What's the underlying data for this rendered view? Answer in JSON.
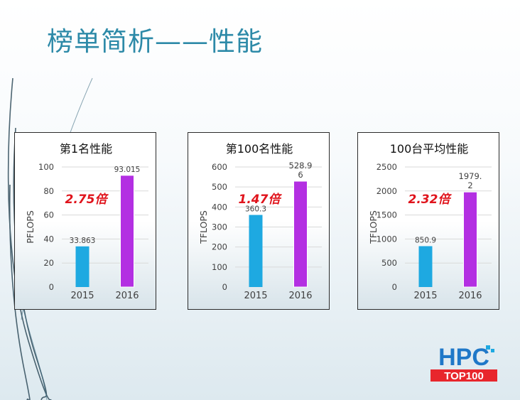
{
  "slide": {
    "title": "榜单简析——性能"
  },
  "colors": {
    "blue": "#1ea9e1",
    "purple": "#b32fe2",
    "multiplier": "#e0141c",
    "title": "#2d8aa8"
  },
  "logo": {
    "line1": "HPC",
    "line2": "TOP100"
  },
  "chart_data": [
    {
      "type": "bar",
      "title": "第1名性能",
      "ylabel": "PFLOPS",
      "categories": [
        "2015",
        "2016"
      ],
      "values": [
        33.863,
        93.015
      ],
      "value_labels": [
        "33.863",
        "93.015"
      ],
      "yticks": [
        "0",
        "20",
        "40",
        "60",
        "80",
        "100"
      ],
      "ylim": [
        0,
        100
      ],
      "multiplier": "2.75倍",
      "grid": true
    },
    {
      "type": "bar",
      "title": "第100名性能",
      "ylabel": "TFLOPS",
      "categories": [
        "2015",
        "2016"
      ],
      "values": [
        360.3,
        528.96
      ],
      "value_labels": [
        "360.3",
        "528.9\n6"
      ],
      "yticks": [
        "0",
        "100",
        "200",
        "300",
        "400",
        "500",
        "600"
      ],
      "ylim": [
        0,
        600
      ],
      "multiplier": "1.47倍",
      "grid": true
    },
    {
      "type": "bar",
      "title": "100台平均性能",
      "ylabel": "TFLOPS",
      "categories": [
        "2015",
        "2016"
      ],
      "values": [
        850.9,
        1979.2
      ],
      "value_labels": [
        "850.9",
        "1979.\n2"
      ],
      "yticks": [
        "0",
        "500",
        "1000",
        "1500",
        "2000",
        "2500"
      ],
      "ylim": [
        0,
        2500
      ],
      "multiplier": "2.32倍",
      "grid": true
    }
  ]
}
